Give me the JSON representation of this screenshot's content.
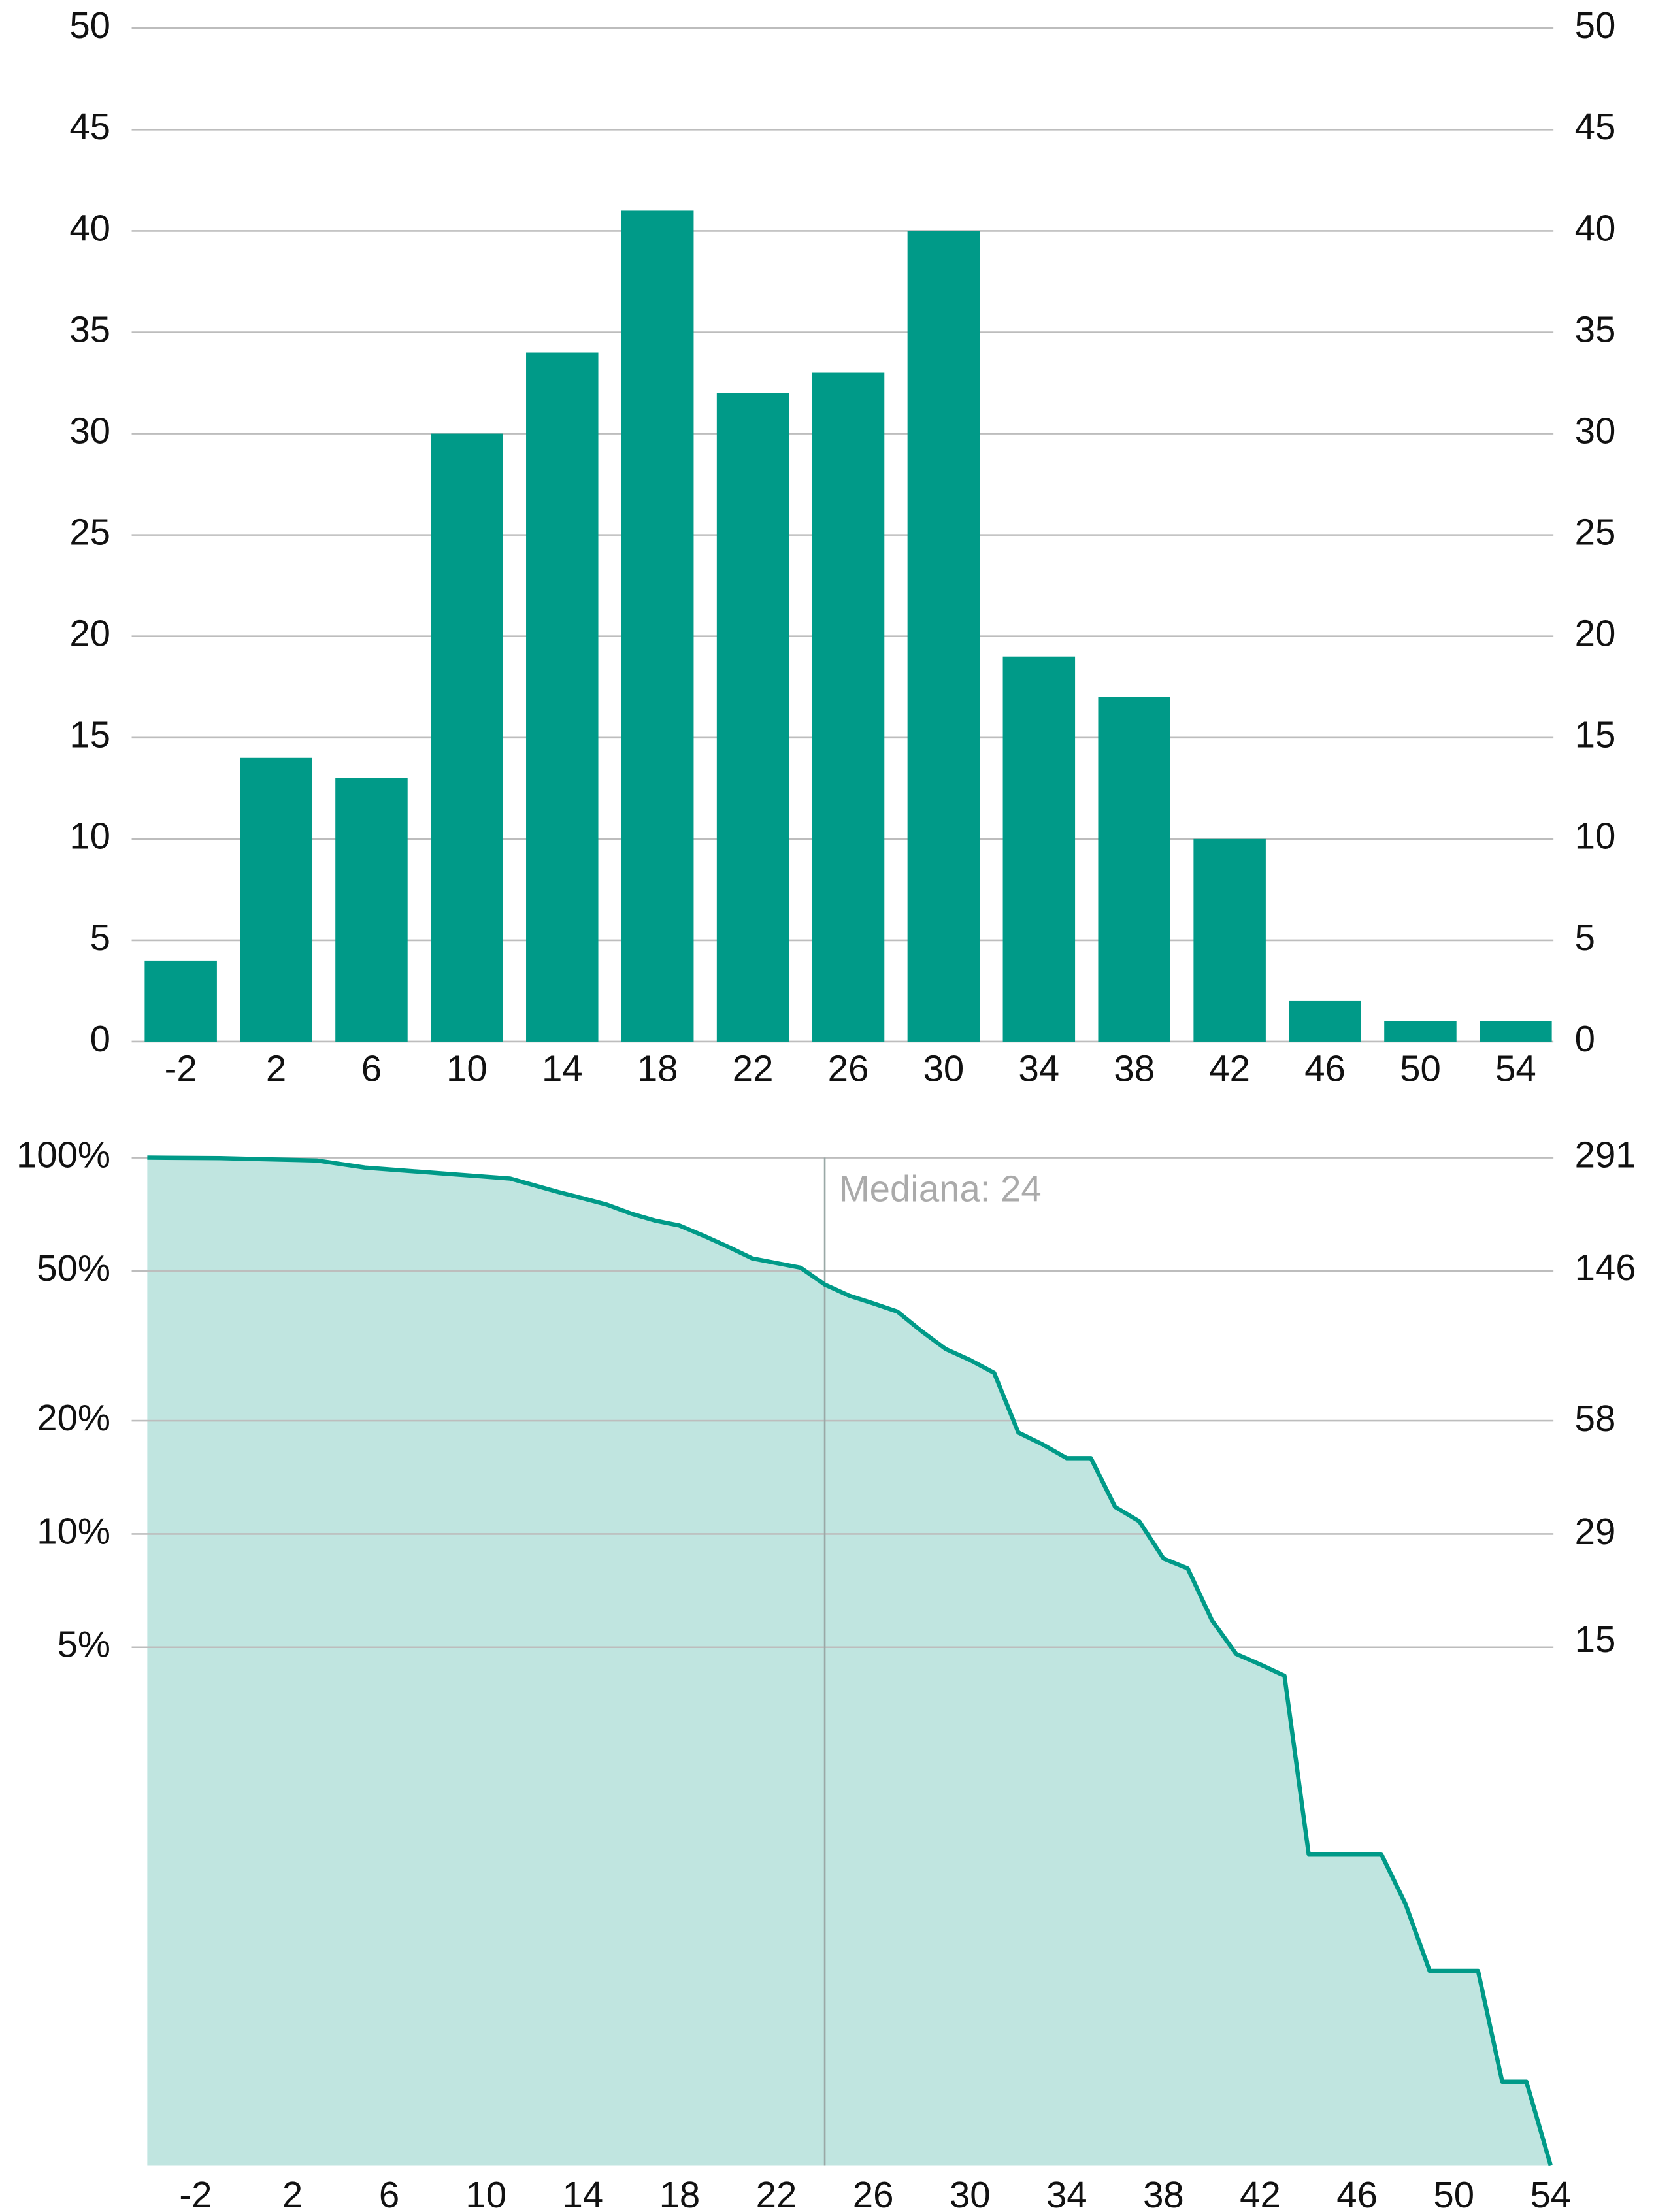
{
  "chart_data": [
    {
      "type": "bar",
      "categories": [
        "-2",
        "2",
        "6",
        "10",
        "14",
        "18",
        "22",
        "26",
        "30",
        "34",
        "38",
        "42",
        "46",
        "50",
        "54"
      ],
      "values": [
        4,
        14,
        13,
        30,
        34,
        41,
        32,
        33,
        40,
        19,
        17,
        10,
        2,
        1,
        1
      ],
      "color": "#009a88",
      "ylim": [
        0,
        50
      ],
      "yticks": [
        0,
        5,
        10,
        15,
        20,
        25,
        30,
        35,
        40,
        45,
        50
      ],
      "y2lim": [
        0,
        50
      ],
      "y2ticks": [
        0,
        5,
        10,
        15,
        20,
        25,
        30,
        35,
        40,
        45,
        50
      ],
      "grid": true
    },
    {
      "type": "area",
      "log_scale": true,
      "annotation": "Mediana: 24",
      "median": 24,
      "x": [
        -4,
        -1,
        3,
        5,
        8,
        10,
        11,
        13,
        14,
        15,
        16,
        17,
        18,
        19,
        20,
        21,
        23,
        24,
        25,
        26,
        27,
        28,
        29,
        30,
        31,
        32,
        33,
        34,
        35,
        36,
        37,
        38,
        39,
        40,
        41,
        42,
        43,
        44,
        45,
        46,
        47,
        48,
        49,
        50,
        51,
        52,
        53,
        54
      ],
      "series": [
        {
          "color": "#009a88",
          "fill": "#c0e5e0",
          "values": [
            100,
            99.7,
            98.3,
            94.1,
            91,
            89,
            88,
            81,
            78,
            75,
            71,
            68,
            66,
            62,
            58,
            54,
            51,
            46,
            43,
            41,
            39,
            34.6,
            31,
            29,
            26.8,
            18.6,
            17.3,
            15.9,
            15.9,
            11.8,
            10.8,
            8.6,
            8.1,
            5.9,
            4.8,
            4.5,
            4.2,
            1.41,
            1.41,
            1.41,
            1.41,
            1.04,
            0.69,
            0.69,
            0.69,
            0.35,
            0.35,
            0.21
          ]
        }
      ],
      "xlim": [
        -4,
        54
      ],
      "xticks": [
        -2,
        2,
        6,
        10,
        14,
        18,
        22,
        26,
        30,
        34,
        38,
        42,
        46,
        50,
        54
      ],
      "ylim": [
        0.21,
        100
      ],
      "yticks": [
        {
          "value": 100,
          "label": "100%"
        },
        {
          "value": 50,
          "label": "50%"
        },
        {
          "value": 20,
          "label": "20%"
        },
        {
          "value": 10,
          "label": "10%"
        },
        {
          "value": 5,
          "label": "5%"
        }
      ],
      "y2lim": [
        0.611,
        291
      ],
      "y2ticks": [
        291,
        146,
        58,
        29,
        15
      ],
      "grid": true
    }
  ]
}
